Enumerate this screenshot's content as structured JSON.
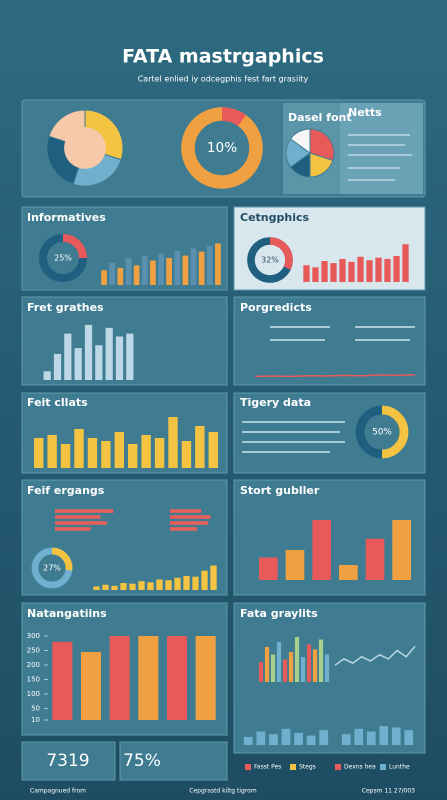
{
  "header": {
    "title": "FATA mastrgaphics",
    "subtitle": "Cartel enlied iy odcegphis fest fart grasiity"
  },
  "chart_data": [
    {
      "type": "pie",
      "values": [
        30,
        25,
        25,
        20
      ],
      "colors": [
        "#f5c342",
        "#6fb0cf",
        "#1f5f80",
        "#f7c9a8"
      ]
    },
    {
      "type": "donut",
      "values": [
        10
      ],
      "value_labels": [
        "10%"
      ],
      "ylim": [
        0,
        100
      ],
      "color": "#e85a5a",
      "track": "#f0a040"
    },
    {
      "type": "pie",
      "title": "Dasel font",
      "values": [
        30,
        20,
        15,
        20,
        15
      ],
      "colors": [
        "#e85a5a",
        "#f5c342",
        "#1f5f80",
        "#6fb0cf",
        "#f7f7f7"
      ]
    },
    {
      "type": "text",
      "title": "Netts"
    },
    {
      "type": "donut",
      "title": "Informatives",
      "values": [
        25
      ],
      "value_labels": [
        "25%"
      ],
      "ylim": [
        0,
        100
      ],
      "color": "#e85a5a",
      "track": "#1f5f80"
    },
    {
      "type": "bar",
      "values": [
        30,
        45,
        35,
        55,
        40,
        60,
        50,
        65,
        55,
        70,
        60,
        75,
        68,
        80,
        85
      ],
      "colors": [
        "#f0a040",
        "#5a8fb0"
      ],
      "ylim": [
        0,
        100
      ]
    },
    {
      "type": "donut",
      "title": "Cetngphics",
      "values": [
        32
      ],
      "value_labels": [
        "32%"
      ],
      "ylim": [
        0,
        100
      ],
      "color": "#e85a5a",
      "track": "#1f5f80"
    },
    {
      "type": "bar",
      "values": [
        40,
        35,
        50,
        45,
        55,
        48,
        60,
        52,
        58,
        55,
        62,
        90
      ],
      "colors": [
        "#e85a5a"
      ],
      "ylim": [
        0,
        100
      ]
    },
    {
      "type": "bar",
      "title": "Fret grathes",
      "values": [
        15,
        45,
        80,
        55,
        95,
        60,
        90,
        75,
        80
      ],
      "colors": [
        "#bcd8e6"
      ],
      "ylim": [
        0,
        100
      ]
    },
    {
      "type": "line",
      "title": "Porgredicts",
      "values": [
        5,
        6,
        5,
        7,
        6,
        8,
        7,
        9,
        8,
        10
      ],
      "color": "#e85a5a",
      "ylim": [
        0,
        100
      ]
    },
    {
      "type": "bar",
      "title": "Feit cllats",
      "values": [
        50,
        55,
        40,
        65,
        50,
        45,
        60,
        40,
        55,
        50,
        85,
        45,
        70,
        60
      ],
      "colors": [
        "#f5c342"
      ],
      "ylim": [
        0,
        100
      ]
    },
    {
      "type": "donut",
      "title": "Tigery data",
      "values": [
        50
      ],
      "value_labels": [
        "50%"
      ],
      "ylim": [
        0,
        100
      ],
      "color": "#f5c342",
      "track": "#1f5f80"
    },
    {
      "type": "hbar",
      "title": "Feif ergangs",
      "values": [
        90,
        70,
        80,
        55
      ],
      "color": "#e8605a",
      "xlim": [
        0,
        100
      ]
    },
    {
      "type": "hbar",
      "values": [
        70,
        90,
        85,
        60
      ],
      "color": "#e8605a",
      "xlim": [
        0,
        100
      ]
    },
    {
      "type": "donut",
      "values": [
        27
      ],
      "value_labels": [
        "27%"
      ],
      "ylim": [
        0,
        100
      ],
      "color": "#f5c342",
      "track": "#6fb0cf"
    },
    {
      "type": "bar",
      "values": [
        10,
        15,
        12,
        20,
        18,
        25,
        22,
        30,
        28,
        35,
        40,
        38,
        55,
        70
      ],
      "colors": [
        "#f5c342"
      ],
      "ylim": [
        0,
        100
      ]
    },
    {
      "type": "bar",
      "title": "Stort gubller",
      "values": [
        30,
        40,
        80,
        20,
        55,
        80
      ],
      "colors": [
        "#e85a5a",
        "#f0a040"
      ],
      "ylim": [
        0,
        100
      ]
    },
    {
      "type": "bar",
      "title": "Natangatiins",
      "values": [
        280,
        245,
        300,
        300,
        300,
        300
      ],
      "colors": [
        "#e85a5a",
        "#f0a040"
      ],
      "ylim": [
        10,
        300
      ],
      "yticks": [
        10,
        50,
        100,
        150,
        200,
        250,
        300
      ]
    },
    {
      "type": "bar",
      "title": "Fata graylits",
      "values": [
        40,
        70,
        55,
        80,
        45,
        60,
        90,
        50,
        75,
        65,
        85,
        55
      ],
      "colors": [
        "#e85a5a",
        "#f0a040",
        "#a8d08d",
        "#6fb0cf"
      ],
      "ylim": [
        0,
        100
      ]
    },
    {
      "type": "line",
      "values": [
        40,
        55,
        45,
        60,
        50,
        65,
        55,
        75,
        60,
        85
      ],
      "color": "#bcd8e6",
      "ylim": [
        0,
        100
      ]
    },
    {
      "type": "bar",
      "values": [
        30,
        50,
        40,
        60,
        45,
        35,
        55
      ],
      "colors": [
        "#6fb0cf"
      ],
      "ylim": [
        0,
        100
      ]
    },
    {
      "type": "bar",
      "values": [
        40,
        60,
        50,
        70,
        65,
        55
      ],
      "colors": [
        "#6fb0cf"
      ],
      "ylim": [
        0,
        100
      ]
    }
  ],
  "legend": [
    {
      "name": "Fasst Pes",
      "color": "#e85a5a"
    },
    {
      "name": "Stegs",
      "color": "#f5c342"
    },
    {
      "name": "Dexns hea",
      "color": "#e85a5a"
    },
    {
      "name": "Lunthe",
      "color": "#6fb0cf"
    }
  ],
  "stats": [
    {
      "number": "7319"
    },
    {
      "number": "75%"
    }
  ],
  "footer": [
    "Campagnued from",
    "Cepgrastd kiltg tigrom",
    "Cepsm 11 27/003"
  ]
}
